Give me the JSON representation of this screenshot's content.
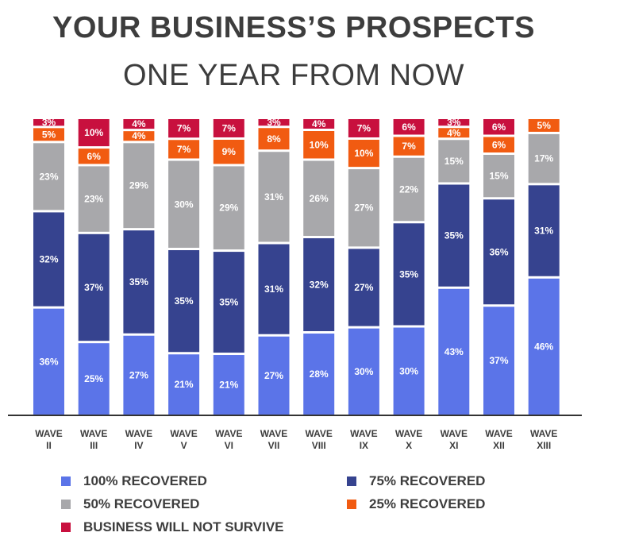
{
  "chart_data": {
    "type": "bar",
    "stacked": true,
    "title": "YOUR BUSINESS’S PROSPECTS",
    "subtitle": "ONE YEAR FROM NOW",
    "categories": [
      "WAVE II",
      "WAVE III",
      "WAVE IV",
      "WAVE V",
      "WAVE VI",
      "WAVE VII",
      "WAVE VIII",
      "WAVE IX",
      "WAVE X",
      "WAVE XI",
      "WAVE XII",
      "WAVE XIII"
    ],
    "category_lines": [
      [
        "WAVE",
        "II"
      ],
      [
        "WAVE",
        "III"
      ],
      [
        "WAVE",
        "IV"
      ],
      [
        "WAVE",
        "V"
      ],
      [
        "WAVE",
        "VI"
      ],
      [
        "WAVE",
        "VII"
      ],
      [
        "WAVE",
        "VIII"
      ],
      [
        "WAVE",
        "IX"
      ],
      [
        "WAVE",
        "X"
      ],
      [
        "WAVE",
        "XI"
      ],
      [
        "WAVE",
        "XII"
      ],
      [
        "WAVE",
        "XIII"
      ]
    ],
    "series": [
      {
        "name": "100% RECOVERED",
        "color": "#5b74e8",
        "values": [
          36,
          25,
          27,
          21,
          21,
          27,
          28,
          30,
          30,
          43,
          37,
          46
        ]
      },
      {
        "name": "75% RECOVERED",
        "color": "#36438f",
        "values": [
          32,
          37,
          35,
          35,
          35,
          31,
          32,
          27,
          35,
          35,
          36,
          31
        ]
      },
      {
        "name": "50% RECOVERED",
        "color": "#a8a8ab",
        "values": [
          23,
          23,
          29,
          30,
          29,
          31,
          26,
          27,
          22,
          15,
          15,
          17
        ]
      },
      {
        "name": "25% RECOVERED",
        "color": "#f15b11",
        "values": [
          5,
          6,
          4,
          7,
          9,
          8,
          10,
          10,
          7,
          4,
          6,
          5
        ]
      },
      {
        "name": "BUSINESS WILL NOT SURVIVE",
        "color": "#c8103e",
        "values": [
          3,
          10,
          4,
          7,
          7,
          3,
          4,
          7,
          6,
          3,
          6,
          null
        ]
      }
    ],
    "value_suffix": "%",
    "ylim": [
      0,
      100
    ],
    "grid": false,
    "legend_position": "bottom"
  }
}
